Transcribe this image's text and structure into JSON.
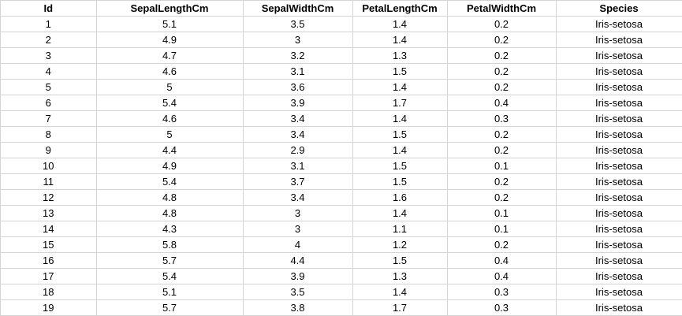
{
  "table": {
    "columns": [
      "Id",
      "SepalLengthCm",
      "SepalWidthCm",
      "PetalLengthCm",
      "PetalWidthCm",
      "Species"
    ],
    "rows": [
      [
        "1",
        "5.1",
        "3.5",
        "1.4",
        "0.2",
        "Iris-setosa"
      ],
      [
        "2",
        "4.9",
        "3",
        "1.4",
        "0.2",
        "Iris-setosa"
      ],
      [
        "3",
        "4.7",
        "3.2",
        "1.3",
        "0.2",
        "Iris-setosa"
      ],
      [
        "4",
        "4.6",
        "3.1",
        "1.5",
        "0.2",
        "Iris-setosa"
      ],
      [
        "5",
        "5",
        "3.6",
        "1.4",
        "0.2",
        "Iris-setosa"
      ],
      [
        "6",
        "5.4",
        "3.9",
        "1.7",
        "0.4",
        "Iris-setosa"
      ],
      [
        "7",
        "4.6",
        "3.4",
        "1.4",
        "0.3",
        "Iris-setosa"
      ],
      [
        "8",
        "5",
        "3.4",
        "1.5",
        "0.2",
        "Iris-setosa"
      ],
      [
        "9",
        "4.4",
        "2.9",
        "1.4",
        "0.2",
        "Iris-setosa"
      ],
      [
        "10",
        "4.9",
        "3.1",
        "1.5",
        "0.1",
        "Iris-setosa"
      ],
      [
        "11",
        "5.4",
        "3.7",
        "1.5",
        "0.2",
        "Iris-setosa"
      ],
      [
        "12",
        "4.8",
        "3.4",
        "1.6",
        "0.2",
        "Iris-setosa"
      ],
      [
        "13",
        "4.8",
        "3",
        "1.4",
        "0.1",
        "Iris-setosa"
      ],
      [
        "14",
        "4.3",
        "3",
        "1.1",
        "0.1",
        "Iris-setosa"
      ],
      [
        "15",
        "5.8",
        "4",
        "1.2",
        "0.2",
        "Iris-setosa"
      ],
      [
        "16",
        "5.7",
        "4.4",
        "1.5",
        "0.4",
        "Iris-setosa"
      ],
      [
        "17",
        "5.4",
        "3.9",
        "1.3",
        "0.4",
        "Iris-setosa"
      ],
      [
        "18",
        "5.1",
        "3.5",
        "1.4",
        "0.3",
        "Iris-setosa"
      ],
      [
        "19",
        "5.7",
        "3.8",
        "1.7",
        "0.3",
        "Iris-setosa"
      ]
    ]
  },
  "colors": {
    "gridline": "#d4d4d4",
    "text": "#000000",
    "background": "#ffffff"
  }
}
